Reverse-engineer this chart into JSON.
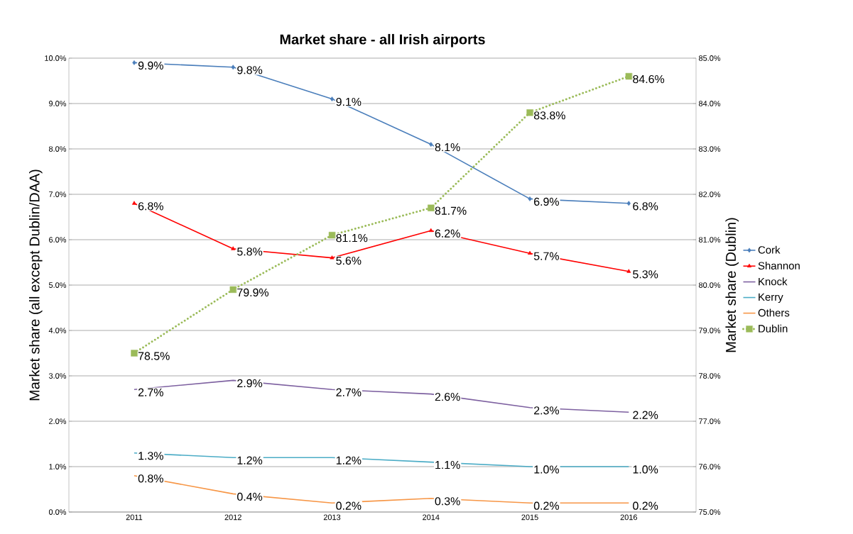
{
  "chart_data": {
    "type": "line",
    "title": "Market share - all Irish airports",
    "ylabel": "Market share (all except Dublin/DAA)",
    "y2label": "Market share (Dublin)",
    "categories": [
      "2011",
      "2012",
      "2013",
      "2014",
      "2015",
      "2016"
    ],
    "ylim": [
      0,
      10
    ],
    "yticks": [
      {
        "value": 0,
        "label": "0.0%"
      },
      {
        "value": 1,
        "label": "1.0%"
      },
      {
        "value": 2,
        "label": "2.0%"
      },
      {
        "value": 3,
        "label": "3.0%"
      },
      {
        "value": 4,
        "label": "4.0%"
      },
      {
        "value": 5,
        "label": "5.0%"
      },
      {
        "value": 6,
        "label": "6.0%"
      },
      {
        "value": 7,
        "label": "7.0%"
      },
      {
        "value": 8,
        "label": "8.0%"
      },
      {
        "value": 9,
        "label": "9.0%"
      },
      {
        "value": 10,
        "label": "10.0%"
      }
    ],
    "y2lim": [
      75,
      85
    ],
    "y2ticks": [
      {
        "value": 75,
        "label": "75.0%"
      },
      {
        "value": 76,
        "label": "76.0%"
      },
      {
        "value": 77,
        "label": "77.0%"
      },
      {
        "value": 78,
        "label": "78.0%"
      },
      {
        "value": 79,
        "label": "79.0%"
      },
      {
        "value": 80,
        "label": "80.0%"
      },
      {
        "value": 81,
        "label": "81.0%"
      },
      {
        "value": 82,
        "label": "82.0%"
      },
      {
        "value": 83,
        "label": "83.0%"
      },
      {
        "value": 84,
        "label": "84.0%"
      },
      {
        "value": 85,
        "label": "85.0%"
      }
    ],
    "grid": "y",
    "legend": "right",
    "series": [
      {
        "name": "Cork",
        "color": "#4a7ebb",
        "marker": "diamond",
        "line_style": "solid",
        "values": [
          9.9,
          9.8,
          9.1,
          8.1,
          6.9,
          6.8
        ],
        "value_labels": [
          "9.9%",
          "9.8%",
          "9.1%",
          "8.1%",
          "6.9%",
          "6.8%"
        ]
      },
      {
        "name": "Shannon",
        "color": "#ff0000",
        "marker": "triangle",
        "line_style": "solid",
        "values": [
          6.8,
          5.8,
          5.6,
          6.2,
          5.7,
          5.3
        ],
        "value_labels": [
          "6.8%",
          "5.8%",
          "5.6%",
          "6.2%",
          "5.7%",
          "5.3%"
        ]
      },
      {
        "name": "Knock",
        "color": "#7d60a0",
        "marker": "none",
        "line_style": "solid",
        "values": [
          2.7,
          2.9,
          2.7,
          2.6,
          2.3,
          2.2
        ],
        "value_labels": [
          "2.7%",
          "2.9%",
          "2.7%",
          "2.6%",
          "2.3%",
          "2.2%"
        ]
      },
      {
        "name": "Kerry",
        "color": "#4bacc6",
        "marker": "none",
        "line_style": "solid",
        "values": [
          1.3,
          1.2,
          1.2,
          1.1,
          1.0,
          1.0
        ],
        "value_labels": [
          "1.3%",
          "1.2%",
          "1.2%",
          "1.1%",
          "1.0%",
          "1.0%"
        ]
      },
      {
        "name": "Others",
        "color": "#f79646",
        "marker": "none",
        "line_style": "solid",
        "values": [
          0.8,
          0.4,
          0.2,
          0.3,
          0.2,
          0.2
        ],
        "value_labels": [
          "0.8%",
          "0.4%",
          "0.2%",
          "0.3%",
          "0.2%",
          "0.2%"
        ]
      },
      {
        "name": "Dublin",
        "color": "#9bbb59",
        "marker": "square",
        "line_style": "dotted",
        "axis": "y2",
        "values": [
          78.5,
          79.9,
          81.1,
          81.7,
          83.8,
          84.6
        ],
        "value_labels": [
          "78.5%",
          "79.9%",
          "81.1%",
          "81.7%",
          "83.8%",
          "84.6%"
        ]
      }
    ]
  }
}
